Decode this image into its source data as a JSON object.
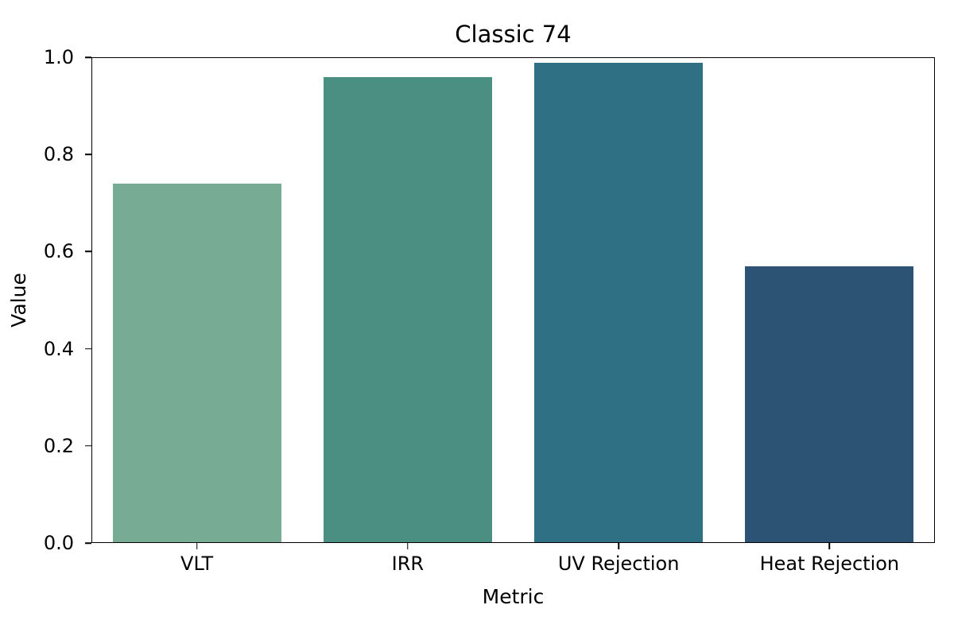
{
  "chart_data": {
    "type": "bar",
    "title": "Classic 74",
    "xlabel": "Metric",
    "ylabel": "Value",
    "categories": [
      "VLT",
      "IRR",
      "UV Rejection",
      "Heat Rejection"
    ],
    "values": [
      0.74,
      0.96,
      0.99,
      0.57
    ],
    "bar_colors": [
      "#78ab93",
      "#4b8e82",
      "#2f7085",
      "#2c5274"
    ],
    "ylim": [
      0.0,
      1.0
    ],
    "yticks": [
      0.0,
      0.2,
      0.4,
      0.6,
      0.8,
      1.0
    ],
    "ytick_labels": [
      "0.0",
      "0.2",
      "0.4",
      "0.6",
      "0.8",
      "1.0"
    ],
    "grid": false,
    "legend": "none",
    "background": "#ffffff",
    "axis_color": "#000000"
  }
}
